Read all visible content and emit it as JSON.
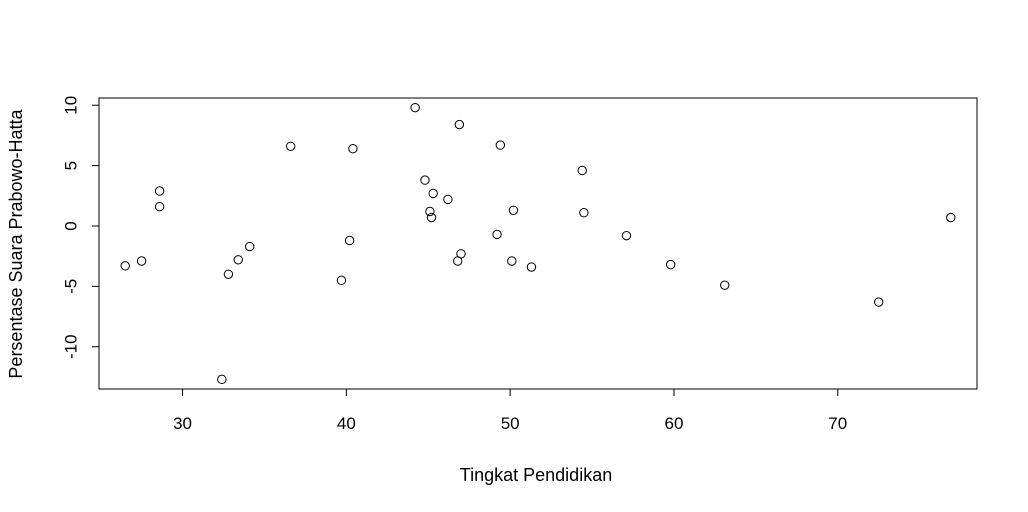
{
  "chart_data": {
    "type": "scatter",
    "title": "",
    "xlabel": "Tingkat Pendidikan",
    "ylabel": "Persentase Suara Prabowo-Hatta",
    "xlim": [
      24.9,
      78.5
    ],
    "ylim": [
      -13.5,
      10.6
    ],
    "xticks": [
      30,
      40,
      50,
      60,
      70
    ],
    "yticks": [
      -10,
      -5,
      0,
      5,
      10
    ],
    "xtick_labels": [
      "30",
      "40",
      "50",
      "60",
      "70"
    ],
    "ytick_labels": [
      "-10",
      "-5",
      "0",
      "5",
      "10"
    ],
    "grid": false,
    "legend": "none",
    "marker": "open-circle",
    "color": "#000000",
    "x": [
      26.5,
      27.5,
      28.6,
      28.6,
      32.4,
      32.8,
      33.4,
      34.1,
      36.6,
      39.7,
      40.2,
      40.4,
      44.2,
      44.8,
      45.1,
      45.2,
      45.3,
      46.2,
      46.8,
      46.9,
      47.0,
      49.2,
      49.4,
      50.1,
      50.2,
      51.3,
      54.4,
      54.5,
      57.1,
      59.8,
      63.1,
      72.5,
      76.9
    ],
    "y": [
      -3.3,
      -2.9,
      2.9,
      1.6,
      -12.7,
      -4.0,
      -2.8,
      -1.7,
      6.6,
      -4.5,
      -1.2,
      6.4,
      9.8,
      3.8,
      1.2,
      0.7,
      2.7,
      2.2,
      -2.9,
      8.4,
      -2.3,
      -0.7,
      6.7,
      -2.9,
      1.3,
      -3.4,
      4.6,
      1.1,
      -0.8,
      -3.2,
      -4.9,
      -6.3,
      0.7
    ]
  }
}
